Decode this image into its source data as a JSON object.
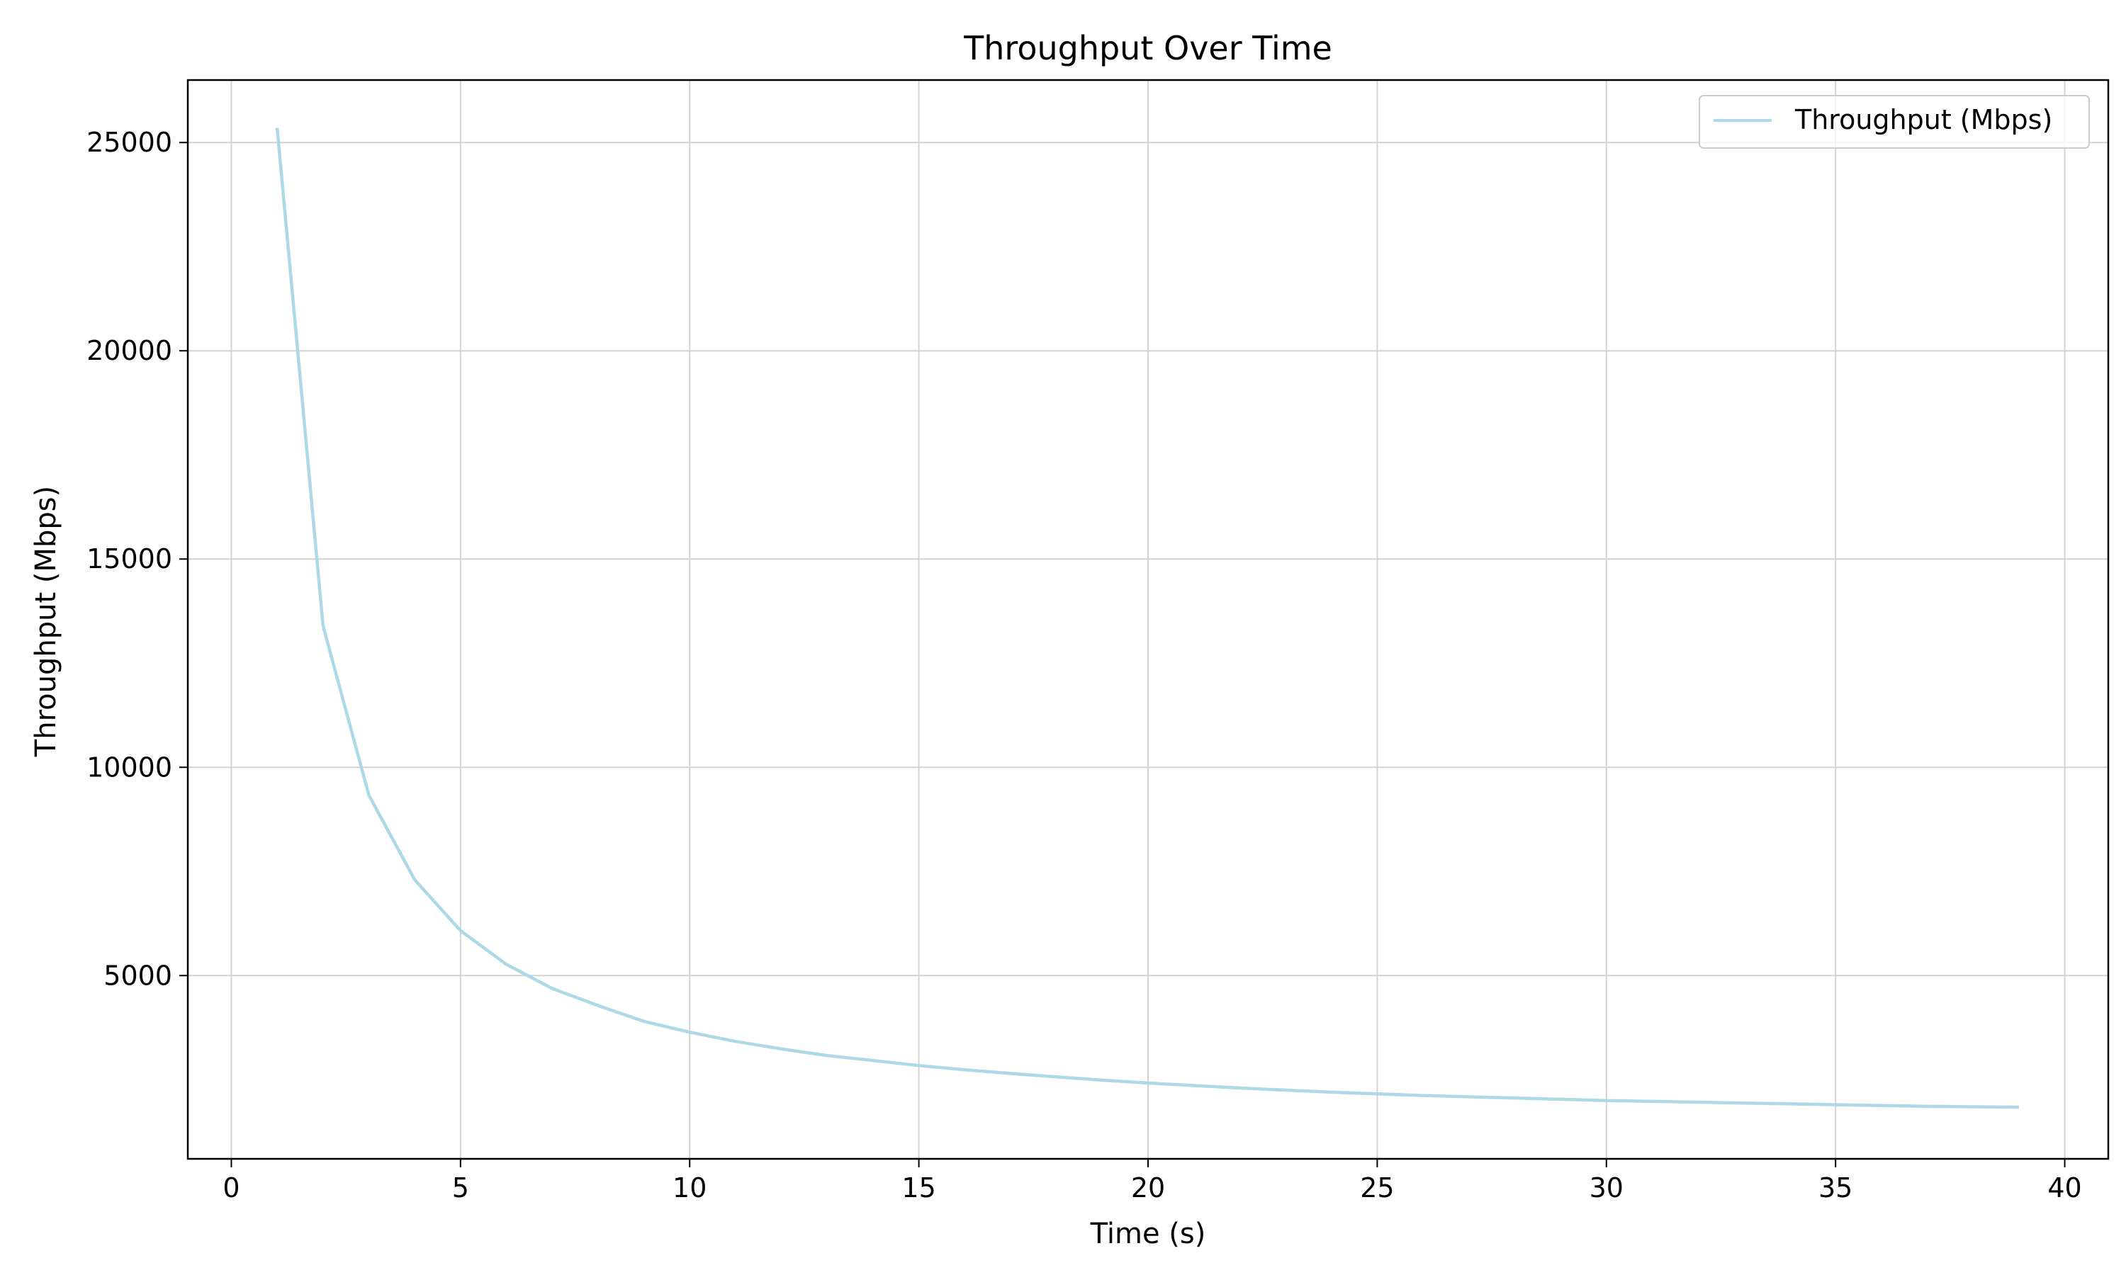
{
  "chart_data": {
    "type": "line",
    "title": "Throughput Over Time",
    "xlabel": "Time (s)",
    "ylabel": "Throughput (Mbps)",
    "xlim": [
      -0.95,
      40.95
    ],
    "ylim": [
      600,
      26500
    ],
    "xticks": [
      0,
      5,
      10,
      15,
      20,
      25,
      30,
      35,
      40
    ],
    "yticks": [
      5000,
      10000,
      15000,
      20000,
      25000
    ],
    "grid": true,
    "legend_position": "top-right",
    "colors": {
      "series": "#add8e6",
      "grid": "#d3d3d3",
      "axes": "#000000"
    },
    "series": [
      {
        "name": "Throughput (Mbps)",
        "x": [
          1,
          2,
          3,
          4,
          5,
          6,
          7,
          8,
          9,
          10,
          11,
          12,
          13,
          14,
          15,
          16,
          17,
          18,
          19,
          20,
          21,
          22,
          23,
          24,
          25,
          26,
          27,
          28,
          29,
          30,
          31,
          32,
          33,
          34,
          35,
          36,
          37,
          38,
          39
        ],
        "y": [
          25350,
          13400,
          9330,
          7300,
          6080,
          5270,
          4690,
          4280,
          3900,
          3640,
          3420,
          3240,
          3080,
          2960,
          2840,
          2740,
          2650,
          2570,
          2490,
          2420,
          2360,
          2300,
          2250,
          2200,
          2160,
          2120,
          2090,
          2060,
          2030,
          2000,
          1980,
          1960,
          1940,
          1920,
          1900,
          1880,
          1860,
          1850,
          1840
        ]
      }
    ]
  }
}
